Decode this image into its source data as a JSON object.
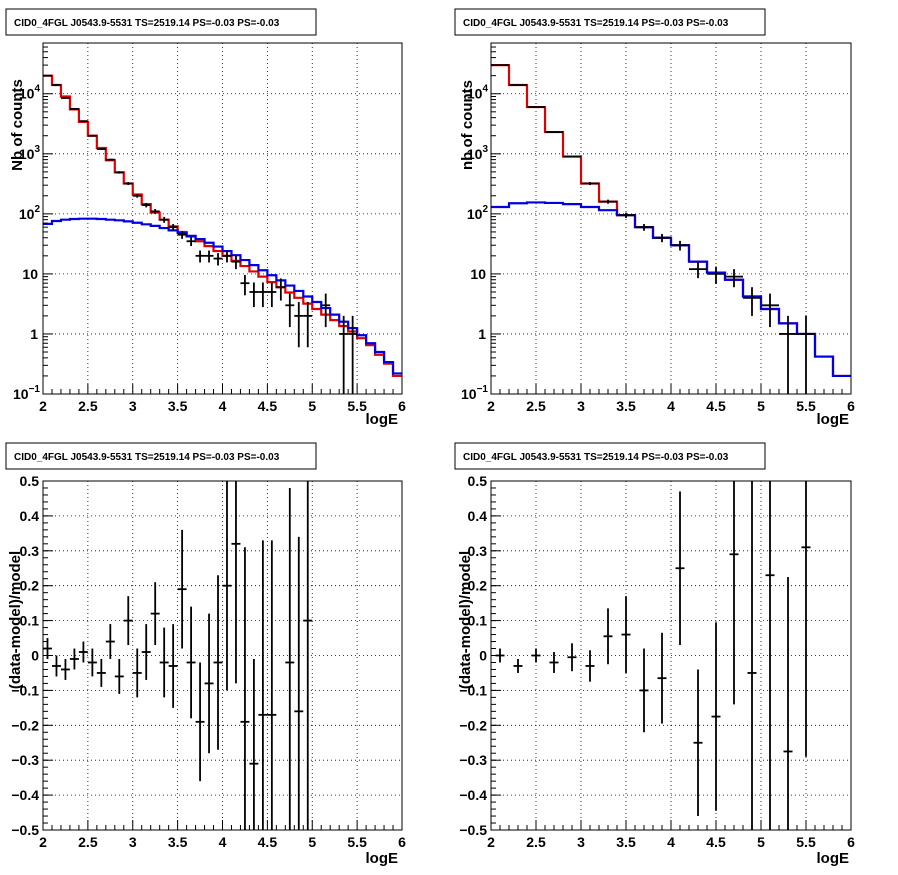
{
  "chart_data": [
    {
      "type": "line",
      "title": "CID0_4FGL J0543.9-5531 TS=2519.14 PS=-0.03 PS=-0.03",
      "xlabel": "logE",
      "ylabel": "Nb of counts",
      "xlim": [
        2,
        6
      ],
      "ylim": [
        0.1,
        70000
      ],
      "yscale": "log",
      "grid": true,
      "xticks": [
        "2",
        "2.5",
        "3",
        "3.5",
        "4",
        "4.5",
        "5",
        "5.5",
        "6"
      ],
      "yticks": [
        {
          "v": 0.1,
          "base": "10",
          "exp": "−1"
        },
        {
          "v": 1,
          "base": "1",
          "exp": ""
        },
        {
          "v": 10,
          "base": "10",
          "exp": ""
        },
        {
          "v": 100,
          "base": "10",
          "exp": "2"
        },
        {
          "v": 1000,
          "base": "10",
          "exp": "3"
        },
        {
          "v": 10000,
          "base": "10",
          "exp": "4"
        }
      ],
      "series": [
        {
          "color": "#e00000",
          "kind": "hist",
          "edges": [
            2,
            2.1,
            2.2,
            2.3,
            2.4,
            2.5,
            2.6,
            2.7,
            2.8,
            2.9,
            3,
            3.1,
            3.2,
            3.3,
            3.4,
            3.5,
            3.6,
            3.7,
            3.8,
            3.9,
            4,
            4.1,
            4.2,
            4.3,
            4.4,
            4.5,
            4.6,
            4.7,
            4.8,
            4.9,
            5,
            5.1,
            5.2,
            5.3,
            5.4,
            5.5,
            5.6,
            5.7,
            5.8,
            5.9,
            6
          ],
          "values": [
            20000,
            14000,
            9000,
            5500,
            3400,
            2000,
            1250,
            780,
            490,
            320,
            210,
            145,
            105,
            80,
            62,
            50,
            42,
            35,
            29,
            24,
            20,
            16.5,
            13.5,
            11,
            9,
            7.3,
            6,
            4.9,
            4,
            3.2,
            2.6,
            2.1,
            1.7,
            1.35,
            1.1,
            0.85,
            0.65,
            0.45,
            0.32,
            0.2
          ]
        },
        {
          "color": "#0000e0",
          "kind": "hist",
          "edges": [
            2,
            2.1,
            2.2,
            2.3,
            2.4,
            2.5,
            2.6,
            2.7,
            2.8,
            2.9,
            3,
            3.1,
            3.2,
            3.3,
            3.4,
            3.5,
            3.6,
            3.7,
            3.8,
            3.9,
            4,
            4.1,
            4.2,
            4.3,
            4.4,
            4.5,
            4.6,
            4.7,
            4.8,
            4.9,
            5,
            5.1,
            5.2,
            5.3,
            5.4,
            5.5,
            5.6,
            5.7,
            5.8,
            5.9,
            6
          ],
          "values": [
            68,
            76,
            80,
            82,
            83,
            83,
            82,
            80,
            78,
            75,
            71,
            67,
            63,
            58,
            53,
            48,
            43,
            38,
            33,
            28.5,
            24,
            20.5,
            17,
            14,
            11.5,
            9.5,
            7.8,
            6.4,
            5.2,
            4.2,
            3.4,
            2.7,
            2.1,
            1.6,
            1.25,
            0.95,
            0.7,
            0.5,
            0.34,
            0.22
          ]
        },
        {
          "color": "#000000",
          "kind": "points",
          "x": [
            2.05,
            2.15,
            2.25,
            2.35,
            2.45,
            2.55,
            2.65,
            2.75,
            2.85,
            2.95,
            3.05,
            3.15,
            3.25,
            3.35,
            3.45,
            3.55,
            3.65,
            3.75,
            3.85,
            3.95,
            4.05,
            4.15,
            4.25,
            4.35,
            4.45,
            4.55,
            4.65,
            4.75,
            4.85,
            4.95,
            5.05,
            5.15,
            5.35,
            5.45
          ],
          "y": [
            20000,
            14000,
            8500,
            5600,
            3500,
            2000,
            1200,
            800,
            490,
            320,
            200,
            140,
            110,
            80,
            60,
            45,
            35,
            20,
            20,
            18,
            20,
            16,
            7,
            5,
            5,
            5,
            6,
            3,
            2,
            2,
            0,
            3,
            1,
            1
          ],
          "yerr": [
            140,
            118,
            92,
            75,
            59,
            45,
            35,
            28,
            22,
            18,
            14,
            12,
            10.5,
            9,
            7.7,
            6.7,
            5.9,
            4.5,
            4.5,
            4.2,
            4.5,
            4,
            2.6,
            2.2,
            2.2,
            2.2,
            2.4,
            1.7,
            1.4,
            1.4,
            0,
            1.7,
            1,
            1
          ]
        }
      ]
    },
    {
      "type": "line",
      "title": "CID0_4FGL J0543.9-5531 TS=2519.14 PS=-0.03 PS=-0.03",
      "xlabel": "logE",
      "ylabel": "nb of counts",
      "xlim": [
        2,
        6
      ],
      "ylim": [
        0.1,
        70000
      ],
      "yscale": "log",
      "grid": true,
      "xticks": [
        "2",
        "2.5",
        "3",
        "3.5",
        "4",
        "4.5",
        "5",
        "5.5",
        "6"
      ],
      "yticks": [
        {
          "v": 0.1,
          "base": "10",
          "exp": "−1"
        },
        {
          "v": 1,
          "base": "1",
          "exp": ""
        },
        {
          "v": 10,
          "base": "10",
          "exp": ""
        },
        {
          "v": 100,
          "base": "10",
          "exp": "2"
        },
        {
          "v": 1000,
          "base": "10",
          "exp": "3"
        },
        {
          "v": 10000,
          "base": "10",
          "exp": "4"
        }
      ],
      "series": [
        {
          "color": "#e00000",
          "kind": "hist",
          "edges": [
            2,
            2.2,
            2.4,
            2.6,
            2.8,
            3,
            3.2,
            3.4,
            3.6,
            3.8,
            4,
            4.2,
            4.4,
            4.6,
            4.8,
            5,
            5.2,
            5.4,
            5.6,
            5.8,
            6
          ],
          "values": [
            30000,
            14000,
            6000,
            2300,
            900,
            320,
            160,
            95,
            60,
            40,
            30,
            16,
            10.5,
            8,
            4.2,
            2.6,
            1.5,
            1,
            0.42,
            0.2
          ]
        },
        {
          "color": "#0000e0",
          "kind": "hist",
          "edges": [
            2,
            2.2,
            2.4,
            2.6,
            2.8,
            3,
            3.2,
            3.4,
            3.6,
            3.8,
            4,
            4.2,
            4.4,
            4.6,
            4.8,
            5,
            5.2,
            5.4,
            5.6,
            5.8,
            6
          ],
          "values": [
            130,
            150,
            155,
            152,
            145,
            130,
            115,
            95,
            60,
            40,
            30,
            16,
            10.5,
            8,
            4.2,
            2.6,
            1.5,
            1,
            0.42,
            0.2
          ]
        },
        {
          "color": "#000000",
          "kind": "points",
          "x": [
            2.1,
            2.3,
            2.5,
            2.7,
            2.9,
            3.1,
            3.3,
            3.5,
            3.7,
            3.9,
            4.1,
            4.3,
            4.5,
            4.7,
            4.9,
            5.1,
            5.3,
            5.5
          ],
          "y": [
            30000,
            14000,
            6000,
            2300,
            900,
            320,
            160,
            95,
            60,
            40,
            30,
            12,
            10,
            9,
            4,
            3,
            1,
            1
          ],
          "yerr": [
            175,
            118,
            77,
            48,
            30,
            18,
            12.6,
            9.7,
            7.7,
            6.3,
            5.5,
            3.5,
            3.2,
            3,
            2,
            1.7,
            1,
            1
          ]
        }
      ]
    },
    {
      "type": "scatter",
      "title": "CID0_4FGL J0543.9-5531 TS=2519.14 PS=-0.03 PS=-0.03",
      "xlabel": "logE",
      "ylabel": "(data-model)/model",
      "xlim": [
        2,
        6
      ],
      "ylim": [
        -0.5,
        0.5
      ],
      "grid": true,
      "xticks": [
        "2",
        "2.5",
        "3",
        "3.5",
        "4",
        "4.5",
        "5",
        "5.5",
        "6"
      ],
      "yticks": [
        "−0.5",
        "−0.4",
        "−0.3",
        "−0.2",
        "−0.1",
        "0",
        "0.1",
        "0.2",
        "0.3",
        "0.4",
        "0.5"
      ],
      "series": [
        {
          "color": "#000000",
          "kind": "points",
          "x": [
            2.05,
            2.15,
            2.25,
            2.35,
            2.45,
            2.55,
            2.65,
            2.75,
            2.85,
            2.95,
            3.05,
            3.15,
            3.25,
            3.35,
            3.45,
            3.55,
            3.65,
            3.75,
            3.85,
            3.95,
            4.05,
            4.15,
            4.25,
            4.35,
            4.45,
            4.55,
            4.75,
            4.85,
            4.95
          ],
          "y": [
            0.02,
            -0.03,
            -0.04,
            -0.01,
            0.01,
            -0.02,
            -0.05,
            0.04,
            -0.06,
            0.1,
            -0.05,
            0.01,
            0.12,
            -0.02,
            -0.03,
            0.19,
            -0.02,
            -0.19,
            -0.08,
            -0.02,
            0.2,
            0.32,
            -0.19,
            -0.31,
            -0.17,
            -0.17,
            -0.02,
            -0.16,
            0.1
          ],
          "yerr": [
            0.03,
            0.03,
            0.03,
            0.03,
            0.03,
            0.04,
            0.04,
            0.05,
            0.05,
            0.07,
            0.07,
            0.08,
            0.09,
            0.1,
            0.12,
            0.17,
            0.16,
            0.17,
            0.2,
            0.25,
            0.3,
            0.4,
            0.5,
            0.3,
            0.5,
            0.5,
            0.5,
            0.5,
            0.6
          ]
        }
      ]
    },
    {
      "type": "scatter",
      "title": "CID0_4FGL J0543.9-5531 TS=2519.14 PS=-0.03 PS=-0.03",
      "xlabel": "logE",
      "ylabel": "(data-model)/model",
      "xlim": [
        2,
        6
      ],
      "ylim": [
        -0.5,
        0.5
      ],
      "grid": true,
      "xticks": [
        "2",
        "2.5",
        "3",
        "3.5",
        "4",
        "4.5",
        "5",
        "5.5",
        "6"
      ],
      "yticks": [
        "−0.5",
        "−0.4",
        "−0.3",
        "−0.2",
        "−0.1",
        "0",
        "0.1",
        "0.2",
        "0.3",
        "0.4",
        "0.5"
      ],
      "series": [
        {
          "color": "#000000",
          "kind": "points",
          "x": [
            2.1,
            2.3,
            2.5,
            2.7,
            2.9,
            3.1,
            3.3,
            3.5,
            3.7,
            3.9,
            4.1,
            4.3,
            4.5,
            4.7,
            4.9,
            5.1,
            5.3,
            5.5
          ],
          "y": [
            0,
            -0.03,
            0,
            -0.02,
            -0.005,
            -0.03,
            0.055,
            0.06,
            -0.1,
            -0.065,
            0.25,
            -0.25,
            -0.175,
            0.29,
            -0.05,
            0.23,
            -0.275,
            0.31
          ],
          "yerr": [
            0.02,
            0.02,
            0.02,
            0.03,
            0.04,
            0.045,
            0.08,
            0.11,
            0.12,
            0.13,
            0.22,
            0.21,
            0.27,
            0.43,
            0.55,
            0.74,
            0.5,
            0.6
          ]
        }
      ]
    }
  ]
}
